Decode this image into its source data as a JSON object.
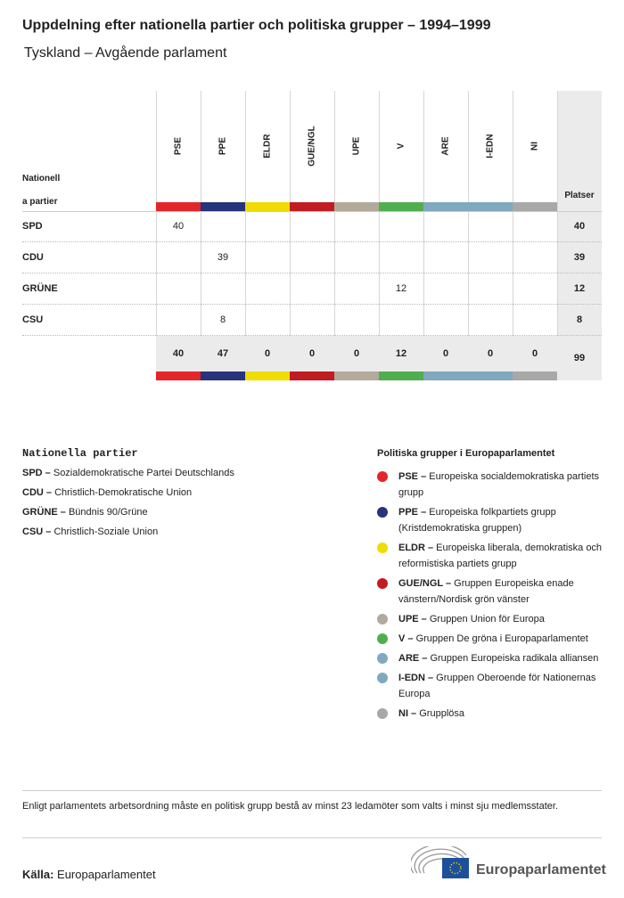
{
  "title": "Uppdelning efter nationella partier och politiska grupper – 1994–1999",
  "subtitle": "Tyskland – Avgående parlament",
  "table": {
    "row_header_line1": "Nationell",
    "row_header_line2": "a partier",
    "total_header": "Platser",
    "groups": [
      {
        "code": "PSE",
        "color": "#e3262a"
      },
      {
        "code": "PPE",
        "color": "#27337a"
      },
      {
        "code": "ELDR",
        "color": "#f0dc00"
      },
      {
        "code": "GUE/NGL",
        "color": "#c11c22"
      },
      {
        "code": "UPE",
        "color": "#b3aa9c"
      },
      {
        "code": "V",
        "color": "#4faf4f"
      },
      {
        "code": "ARE",
        "color": "#80a8bf"
      },
      {
        "code": "I-EDN",
        "color": "#80a8bf"
      },
      {
        "code": "NI",
        "color": "#a8a8a8"
      }
    ],
    "rows": [
      {
        "party": "SPD",
        "values": [
          "40",
          "",
          "",
          "",
          "",
          "",
          "",
          "",
          ""
        ],
        "total": "40"
      },
      {
        "party": "CDU",
        "values": [
          "",
          "39",
          "",
          "",
          "",
          "",
          "",
          "",
          ""
        ],
        "total": "39"
      },
      {
        "party": "GRÜNE",
        "values": [
          "",
          "",
          "",
          "",
          "",
          "12",
          "",
          "",
          ""
        ],
        "total": "12"
      },
      {
        "party": "CSU",
        "values": [
          "",
          "8",
          "",
          "",
          "",
          "",
          "",
          "",
          ""
        ],
        "total": "8"
      }
    ],
    "totals": [
      "40",
      "47",
      "0",
      "0",
      "0",
      "12",
      "0",
      "0",
      "0"
    ],
    "grand_total": "99"
  },
  "national_legend": {
    "heading": "Nationella partier",
    "items": [
      {
        "abbr": "SPD –",
        "name": " Sozialdemokratische Partei Deutschlands"
      },
      {
        "abbr": "CDU –",
        "name": " Christlich-Demokratische Union"
      },
      {
        "abbr": "GRÜNE –",
        "name": " Bündnis 90/Grüne"
      },
      {
        "abbr": "CSU –",
        "name": " Christlich-Soziale Union"
      }
    ]
  },
  "group_legend": {
    "heading": "Politiska grupper i Europaparlamentet",
    "items": [
      {
        "abbr": "PSE –",
        "name": " Europeiska socialdemokratiska partiets grupp",
        "color": "#e3262a"
      },
      {
        "abbr": "PPE –",
        "name": " Europeiska folkpartiets grupp (Kristdemokratiska gruppen)",
        "color": "#27337a"
      },
      {
        "abbr": "ELDR –",
        "name": " Europeiska liberala, demokratiska och reformistiska partiets grupp",
        "color": "#f0dc00"
      },
      {
        "abbr": "GUE/NGL –",
        "name": " Gruppen Europeiska enade vänstern/Nordisk grön vänster",
        "color": "#c11c22"
      },
      {
        "abbr": "UPE –",
        "name": " Gruppen Union för Europa",
        "color": "#b3aa9c"
      },
      {
        "abbr": "V –",
        "name": " Gruppen De gröna i Europaparlamentet",
        "color": "#4faf4f"
      },
      {
        "abbr": "ARE –",
        "name": " Gruppen Europeiska radikala alliansen",
        "color": "#80a8bf"
      },
      {
        "abbr": "I-EDN –",
        "name": " Gruppen Oberoende för Nationernas Europa",
        "color": "#80a8bf"
      },
      {
        "abbr": "NI –",
        "name": " Grupplösa",
        "color": "#a8a8a8"
      }
    ]
  },
  "note": "Enligt parlamentets arbetsordning måste en politisk grupp bestå av minst 23 ledamöter som valts i minst sju medlemsstater.",
  "source_label": "Källa:",
  "source": " Europaparlamentet",
  "logo_text": "Europaparlamentet"
}
